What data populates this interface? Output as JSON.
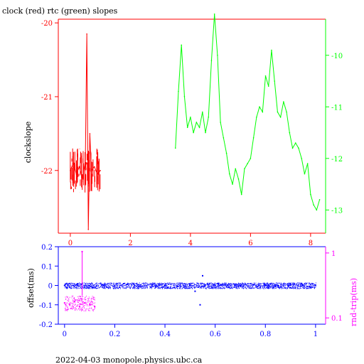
{
  "title": "clock (red) rtc (green) slopes",
  "footer": "2022-04-03  monopole.physics.ubc.ca",
  "colors": {
    "background": "#ffffff",
    "axis_black": "#000000",
    "clock_red": "#ff0000",
    "rtc_green": "#00ff00",
    "offset_blue": "#0000ff",
    "rndtrip_magenta": "#ff00ff"
  },
  "chart_data": [
    {
      "type": "line",
      "title": "clock (red) rtc (green) slopes",
      "ylabel": "clockslope",
      "xlim": [
        -0.4,
        8.5
      ],
      "ylim": [
        -22.85,
        -19.95
      ],
      "y2lim": [
        -13.45,
        -9.3
      ],
      "xticks": [
        0,
        2,
        4,
        6,
        8
      ],
      "yticks": [
        -22,
        -21,
        -20
      ],
      "y2ticks": [
        -13,
        -12,
        -11,
        -10
      ],
      "xtick_labels": [
        "0",
        "2",
        "4",
        "6",
        "8"
      ],
      "ytick_labels": [
        "-22",
        "-21",
        "-20"
      ],
      "y2tick_labels": [
        "-13",
        "-12",
        "-11",
        "-10"
      ],
      "series": [
        {
          "name": "clock",
          "axis": "left",
          "color": "#ff0000",
          "x": [
            0.0,
            0.1,
            0.2,
            0.3,
            0.4,
            0.5,
            0.55,
            0.6,
            0.65,
            0.7,
            0.8,
            0.9,
            1.0
          ],
          "y": [
            -22.0,
            -21.9,
            -22.05,
            -21.95,
            -22.1,
            -21.9,
            -20.15,
            -22.8,
            -21.5,
            -22.0,
            -21.95,
            -22.05,
            -22.0
          ],
          "band": {
            "x_start": 0.0,
            "x_end": 1.0,
            "y_low": -22.3,
            "y_high": -21.7
          }
        },
        {
          "name": "rtc",
          "axis": "right",
          "color": "#00ff00",
          "x": [
            3.5,
            3.6,
            3.7,
            3.8,
            3.9,
            4.0,
            4.1,
            4.2,
            4.3,
            4.4,
            4.5,
            4.6,
            4.7,
            4.8,
            4.9,
            5.0,
            5.1,
            5.2,
            5.3,
            5.4,
            5.5,
            5.6,
            5.7,
            5.8,
            5.9,
            6.0,
            6.1,
            6.2,
            6.3,
            6.4,
            6.5,
            6.6,
            6.7,
            6.8,
            6.9,
            7.0,
            7.1,
            7.2,
            7.3,
            7.4,
            7.5,
            7.6,
            7.7,
            7.8,
            7.9,
            8.0,
            8.1,
            8.2,
            8.3
          ],
          "y": [
            -11.8,
            -10.7,
            -9.8,
            -10.8,
            -11.4,
            -11.2,
            -11.5,
            -11.3,
            -11.4,
            -11.1,
            -11.5,
            -11.2,
            -10.1,
            -9.2,
            -10.0,
            -11.3,
            -11.6,
            -11.9,
            -12.3,
            -12.5,
            -12.2,
            -12.4,
            -12.7,
            -12.2,
            -12.1,
            -12.0,
            -11.6,
            -11.2,
            -11.0,
            -11.1,
            -10.4,
            -10.6,
            -9.9,
            -10.5,
            -11.1,
            -11.2,
            -10.9,
            -11.1,
            -11.5,
            -11.8,
            -11.7,
            -11.8,
            -12.0,
            -12.3,
            -12.1,
            -12.7,
            -12.9,
            -13.0,
            -12.8
          ]
        }
      ]
    },
    {
      "type": "scatter",
      "ylabel": "offset(ms)",
      "y2label": "rnd-trip(ms)",
      "xlim": [
        -0.025,
        1.04
      ],
      "ylim": [
        -0.2,
        0.2
      ],
      "y2lim": [
        0.08,
        1.25
      ],
      "y2scale": "log",
      "xticks": [
        0,
        0.2,
        0.4,
        0.6,
        0.8,
        1
      ],
      "yticks": [
        -0.2,
        -0.1,
        0,
        0.1,
        0.2
      ],
      "y2ticks": [
        0.1,
        1
      ],
      "xtick_labels": [
        "0",
        "0.2",
        "0.4",
        "0.6",
        "0.8",
        "1"
      ],
      "ytick_labels": [
        "-0.2",
        "-0.1",
        "0",
        "0.1",
        "0.2"
      ],
      "y2tick_labels": [
        "0.1",
        "1"
      ],
      "series": [
        {
          "name": "offset",
          "axis": "left",
          "color": "#0000ff",
          "x": [
            0.0,
            0.05,
            0.1,
            0.15,
            0.2,
            0.25,
            0.3,
            0.35,
            0.4,
            0.45,
            0.5,
            0.52,
            0.54,
            0.55,
            0.6,
            0.65,
            0.7,
            0.75,
            0.8,
            0.85,
            0.9,
            0.95,
            1.0
          ],
          "y": [
            0.0,
            0.005,
            -0.002,
            0.003,
            -0.004,
            0.006,
            -0.003,
            0.004,
            0.001,
            -0.005,
            0.002,
            -0.03,
            -0.1,
            0.05,
            0.0,
            0.003,
            -0.002,
            0.004,
            0.0,
            -0.003,
            0.002,
            0.0,
            0.001
          ],
          "band": {
            "x_start": 0.0,
            "x_end": 1.0,
            "y_low": -0.015,
            "y_high": 0.015
          }
        },
        {
          "name": "rnd-trip",
          "axis": "right",
          "color": "#ff00ff",
          "x": [
            0.0,
            0.02,
            0.04,
            0.06,
            0.07,
            0.08,
            0.1,
            0.12
          ],
          "y": [
            0.17,
            0.16,
            0.18,
            0.15,
            1.05,
            0.17,
            0.16,
            0.15
          ],
          "band": {
            "x_start": 0.0,
            "x_end": 0.12,
            "y_low": 0.13,
            "y_high": 0.22
          }
        }
      ]
    }
  ]
}
